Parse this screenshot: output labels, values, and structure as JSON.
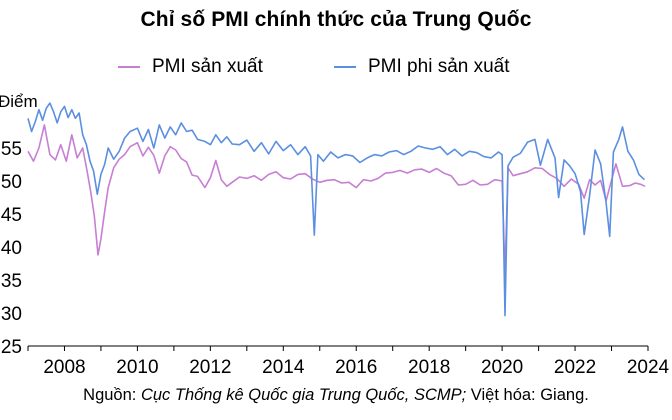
{
  "chart_data": {
    "type": "line",
    "title": "Chỉ số PMI chính thức của Trung Quốc",
    "ylabel": "Điểm",
    "xlabel": "",
    "xlim": [
      2007.0,
      2024.0
    ],
    "ylim": [
      25,
      60
    ],
    "x_ticks": [
      "2008",
      "2010",
      "2012",
      "2014",
      "2016",
      "2018",
      "2020",
      "2022",
      "2024"
    ],
    "y_ticks": [
      "25",
      "30",
      "35",
      "40",
      "45",
      "50",
      "55"
    ],
    "legend_position": "top",
    "series": [
      {
        "name": "PMI sản xuất",
        "color": "#c77fd4",
        "points": [
          [
            2007.0,
            54.5
          ],
          [
            2007.15,
            53.0
          ],
          [
            2007.3,
            55.0
          ],
          [
            2007.45,
            58.5
          ],
          [
            2007.6,
            54.0
          ],
          [
            2007.75,
            53.2
          ],
          [
            2007.9,
            55.5
          ],
          [
            2008.05,
            53.0
          ],
          [
            2008.2,
            57.0
          ],
          [
            2008.35,
            53.5
          ],
          [
            2008.5,
            55.0
          ],
          [
            2008.62,
            51.5
          ],
          [
            2008.72,
            48.4
          ],
          [
            2008.82,
            44.6
          ],
          [
            2008.92,
            38.8
          ],
          [
            2009.0,
            41.2
          ],
          [
            2009.1,
            45.3
          ],
          [
            2009.2,
            49.0
          ],
          [
            2009.35,
            52.0
          ],
          [
            2009.5,
            53.3
          ],
          [
            2009.65,
            54.0
          ],
          [
            2009.8,
            55.2
          ],
          [
            2010.0,
            55.8
          ],
          [
            2010.15,
            53.8
          ],
          [
            2010.3,
            55.1
          ],
          [
            2010.45,
            53.9
          ],
          [
            2010.6,
            51.2
          ],
          [
            2010.75,
            53.8
          ],
          [
            2010.9,
            55.2
          ],
          [
            2011.05,
            54.7
          ],
          [
            2011.2,
            53.4
          ],
          [
            2011.35,
            52.9
          ],
          [
            2011.5,
            50.9
          ],
          [
            2011.65,
            50.7
          ],
          [
            2011.85,
            49.0
          ],
          [
            2012.0,
            50.5
          ],
          [
            2012.15,
            53.1
          ],
          [
            2012.3,
            50.2
          ],
          [
            2012.45,
            49.2
          ],
          [
            2012.6,
            49.8
          ],
          [
            2012.8,
            50.6
          ],
          [
            2013.0,
            50.4
          ],
          [
            2013.2,
            50.8
          ],
          [
            2013.4,
            50.1
          ],
          [
            2013.6,
            51.0
          ],
          [
            2013.8,
            51.4
          ],
          [
            2014.0,
            50.5
          ],
          [
            2014.2,
            50.3
          ],
          [
            2014.4,
            51.0
          ],
          [
            2014.6,
            51.1
          ],
          [
            2014.8,
            50.3
          ],
          [
            2015.0,
            49.8
          ],
          [
            2015.2,
            50.1
          ],
          [
            2015.4,
            50.2
          ],
          [
            2015.6,
            49.7
          ],
          [
            2015.8,
            49.8
          ],
          [
            2016.0,
            49.0
          ],
          [
            2016.2,
            50.2
          ],
          [
            2016.4,
            50.0
          ],
          [
            2016.6,
            50.4
          ],
          [
            2016.8,
            51.2
          ],
          [
            2017.0,
            51.3
          ],
          [
            2017.2,
            51.6
          ],
          [
            2017.4,
            51.2
          ],
          [
            2017.6,
            51.7
          ],
          [
            2017.8,
            51.8
          ],
          [
            2018.0,
            51.3
          ],
          [
            2018.2,
            51.9
          ],
          [
            2018.4,
            51.2
          ],
          [
            2018.6,
            50.8
          ],
          [
            2018.8,
            49.4
          ],
          [
            2019.0,
            49.5
          ],
          [
            2019.2,
            50.1
          ],
          [
            2019.4,
            49.4
          ],
          [
            2019.6,
            49.5
          ],
          [
            2019.8,
            50.2
          ],
          [
            2020.0,
            50.0
          ],
          [
            2020.08,
            35.7
          ],
          [
            2020.16,
            52.0
          ],
          [
            2020.3,
            50.8
          ],
          [
            2020.5,
            51.1
          ],
          [
            2020.7,
            51.4
          ],
          [
            2020.9,
            52.0
          ],
          [
            2021.1,
            51.9
          ],
          [
            2021.3,
            51.0
          ],
          [
            2021.5,
            50.4
          ],
          [
            2021.7,
            49.2
          ],
          [
            2021.9,
            50.3
          ],
          [
            2022.1,
            49.5
          ],
          [
            2022.25,
            47.4
          ],
          [
            2022.4,
            50.2
          ],
          [
            2022.55,
            49.4
          ],
          [
            2022.7,
            50.1
          ],
          [
            2022.85,
            47.0
          ],
          [
            2023.0,
            50.1
          ],
          [
            2023.12,
            52.6
          ],
          [
            2023.3,
            49.2
          ],
          [
            2023.5,
            49.3
          ],
          [
            2023.65,
            49.7
          ],
          [
            2023.8,
            49.5
          ],
          [
            2023.92,
            49.2
          ]
        ]
      },
      {
        "name": "PMI phi sản xuất",
        "color": "#5b8fe0",
        "points": [
          [
            2007.0,
            59.5
          ],
          [
            2007.1,
            57.5
          ],
          [
            2007.2,
            59.0
          ],
          [
            2007.3,
            60.8
          ],
          [
            2007.4,
            59.2
          ],
          [
            2007.5,
            61.0
          ],
          [
            2007.6,
            61.8
          ],
          [
            2007.7,
            60.5
          ],
          [
            2007.8,
            58.8
          ],
          [
            2007.9,
            60.5
          ],
          [
            2008.0,
            61.3
          ],
          [
            2008.1,
            59.6
          ],
          [
            2008.2,
            60.8
          ],
          [
            2008.3,
            59.5
          ],
          [
            2008.4,
            60.3
          ],
          [
            2008.5,
            57.0
          ],
          [
            2008.6,
            55.5
          ],
          [
            2008.7,
            53.0
          ],
          [
            2008.8,
            51.5
          ],
          [
            2008.9,
            48.0
          ],
          [
            2009.0,
            51.0
          ],
          [
            2009.1,
            52.5
          ],
          [
            2009.2,
            55.0
          ],
          [
            2009.35,
            53.3
          ],
          [
            2009.5,
            54.5
          ],
          [
            2009.65,
            56.5
          ],
          [
            2009.8,
            57.5
          ],
          [
            2010.0,
            58.0
          ],
          [
            2010.15,
            56.0
          ],
          [
            2010.3,
            57.8
          ],
          [
            2010.45,
            55.0
          ],
          [
            2010.6,
            58.5
          ],
          [
            2010.75,
            56.5
          ],
          [
            2010.9,
            58.2
          ],
          [
            2011.05,
            57.0
          ],
          [
            2011.2,
            58.8
          ],
          [
            2011.35,
            57.5
          ],
          [
            2011.5,
            57.7
          ],
          [
            2011.65,
            56.3
          ],
          [
            2011.85,
            56.0
          ],
          [
            2012.0,
            55.5
          ],
          [
            2012.15,
            57.0
          ],
          [
            2012.3,
            55.8
          ],
          [
            2012.45,
            56.7
          ],
          [
            2012.6,
            55.6
          ],
          [
            2012.8,
            55.5
          ],
          [
            2013.0,
            56.2
          ],
          [
            2013.2,
            54.5
          ],
          [
            2013.4,
            55.8
          ],
          [
            2013.6,
            54.1
          ],
          [
            2013.8,
            56.0
          ],
          [
            2014.0,
            54.6
          ],
          [
            2014.2,
            55.5
          ],
          [
            2014.4,
            54.0
          ],
          [
            2014.6,
            55.2
          ],
          [
            2014.75,
            53.8
          ],
          [
            2014.85,
            41.8
          ],
          [
            2014.95,
            54.0
          ],
          [
            2015.1,
            53.0
          ],
          [
            2015.3,
            54.4
          ],
          [
            2015.5,
            53.5
          ],
          [
            2015.7,
            54.0
          ],
          [
            2015.9,
            53.8
          ],
          [
            2016.1,
            52.8
          ],
          [
            2016.3,
            53.5
          ],
          [
            2016.5,
            54.0
          ],
          [
            2016.7,
            53.8
          ],
          [
            2016.9,
            54.4
          ],
          [
            2017.1,
            54.6
          ],
          [
            2017.3,
            54.0
          ],
          [
            2017.5,
            54.5
          ],
          [
            2017.7,
            55.3
          ],
          [
            2017.9,
            55.0
          ],
          [
            2018.1,
            54.8
          ],
          [
            2018.3,
            55.2
          ],
          [
            2018.5,
            54.0
          ],
          [
            2018.7,
            54.8
          ],
          [
            2018.9,
            53.8
          ],
          [
            2019.1,
            54.5
          ],
          [
            2019.3,
            54.3
          ],
          [
            2019.5,
            53.7
          ],
          [
            2019.7,
            53.5
          ],
          [
            2019.9,
            54.4
          ],
          [
            2020.0,
            54.0
          ],
          [
            2020.08,
            29.6
          ],
          [
            2020.16,
            52.3
          ],
          [
            2020.3,
            53.6
          ],
          [
            2020.5,
            54.2
          ],
          [
            2020.7,
            55.9
          ],
          [
            2020.9,
            56.3
          ],
          [
            2021.05,
            52.4
          ],
          [
            2021.25,
            56.3
          ],
          [
            2021.45,
            53.5
          ],
          [
            2021.55,
            47.5
          ],
          [
            2021.7,
            53.2
          ],
          [
            2021.85,
            52.3
          ],
          [
            2022.0,
            51.1
          ],
          [
            2022.15,
            48.4
          ],
          [
            2022.25,
            41.9
          ],
          [
            2022.4,
            47.8
          ],
          [
            2022.55,
            54.7
          ],
          [
            2022.7,
            52.6
          ],
          [
            2022.85,
            46.7
          ],
          [
            2022.95,
            41.6
          ],
          [
            2023.05,
            54.4
          ],
          [
            2023.2,
            56.3
          ],
          [
            2023.3,
            58.2
          ],
          [
            2023.45,
            54.5
          ],
          [
            2023.6,
            53.2
          ],
          [
            2023.75,
            51.0
          ],
          [
            2023.9,
            50.2
          ]
        ]
      }
    ]
  },
  "source": {
    "prefix": "Nguồn: ",
    "italic": "Cục Thống kê Quốc gia Trung Quốc, SCMP;",
    "suffix": " Việt hóa: Giang."
  }
}
